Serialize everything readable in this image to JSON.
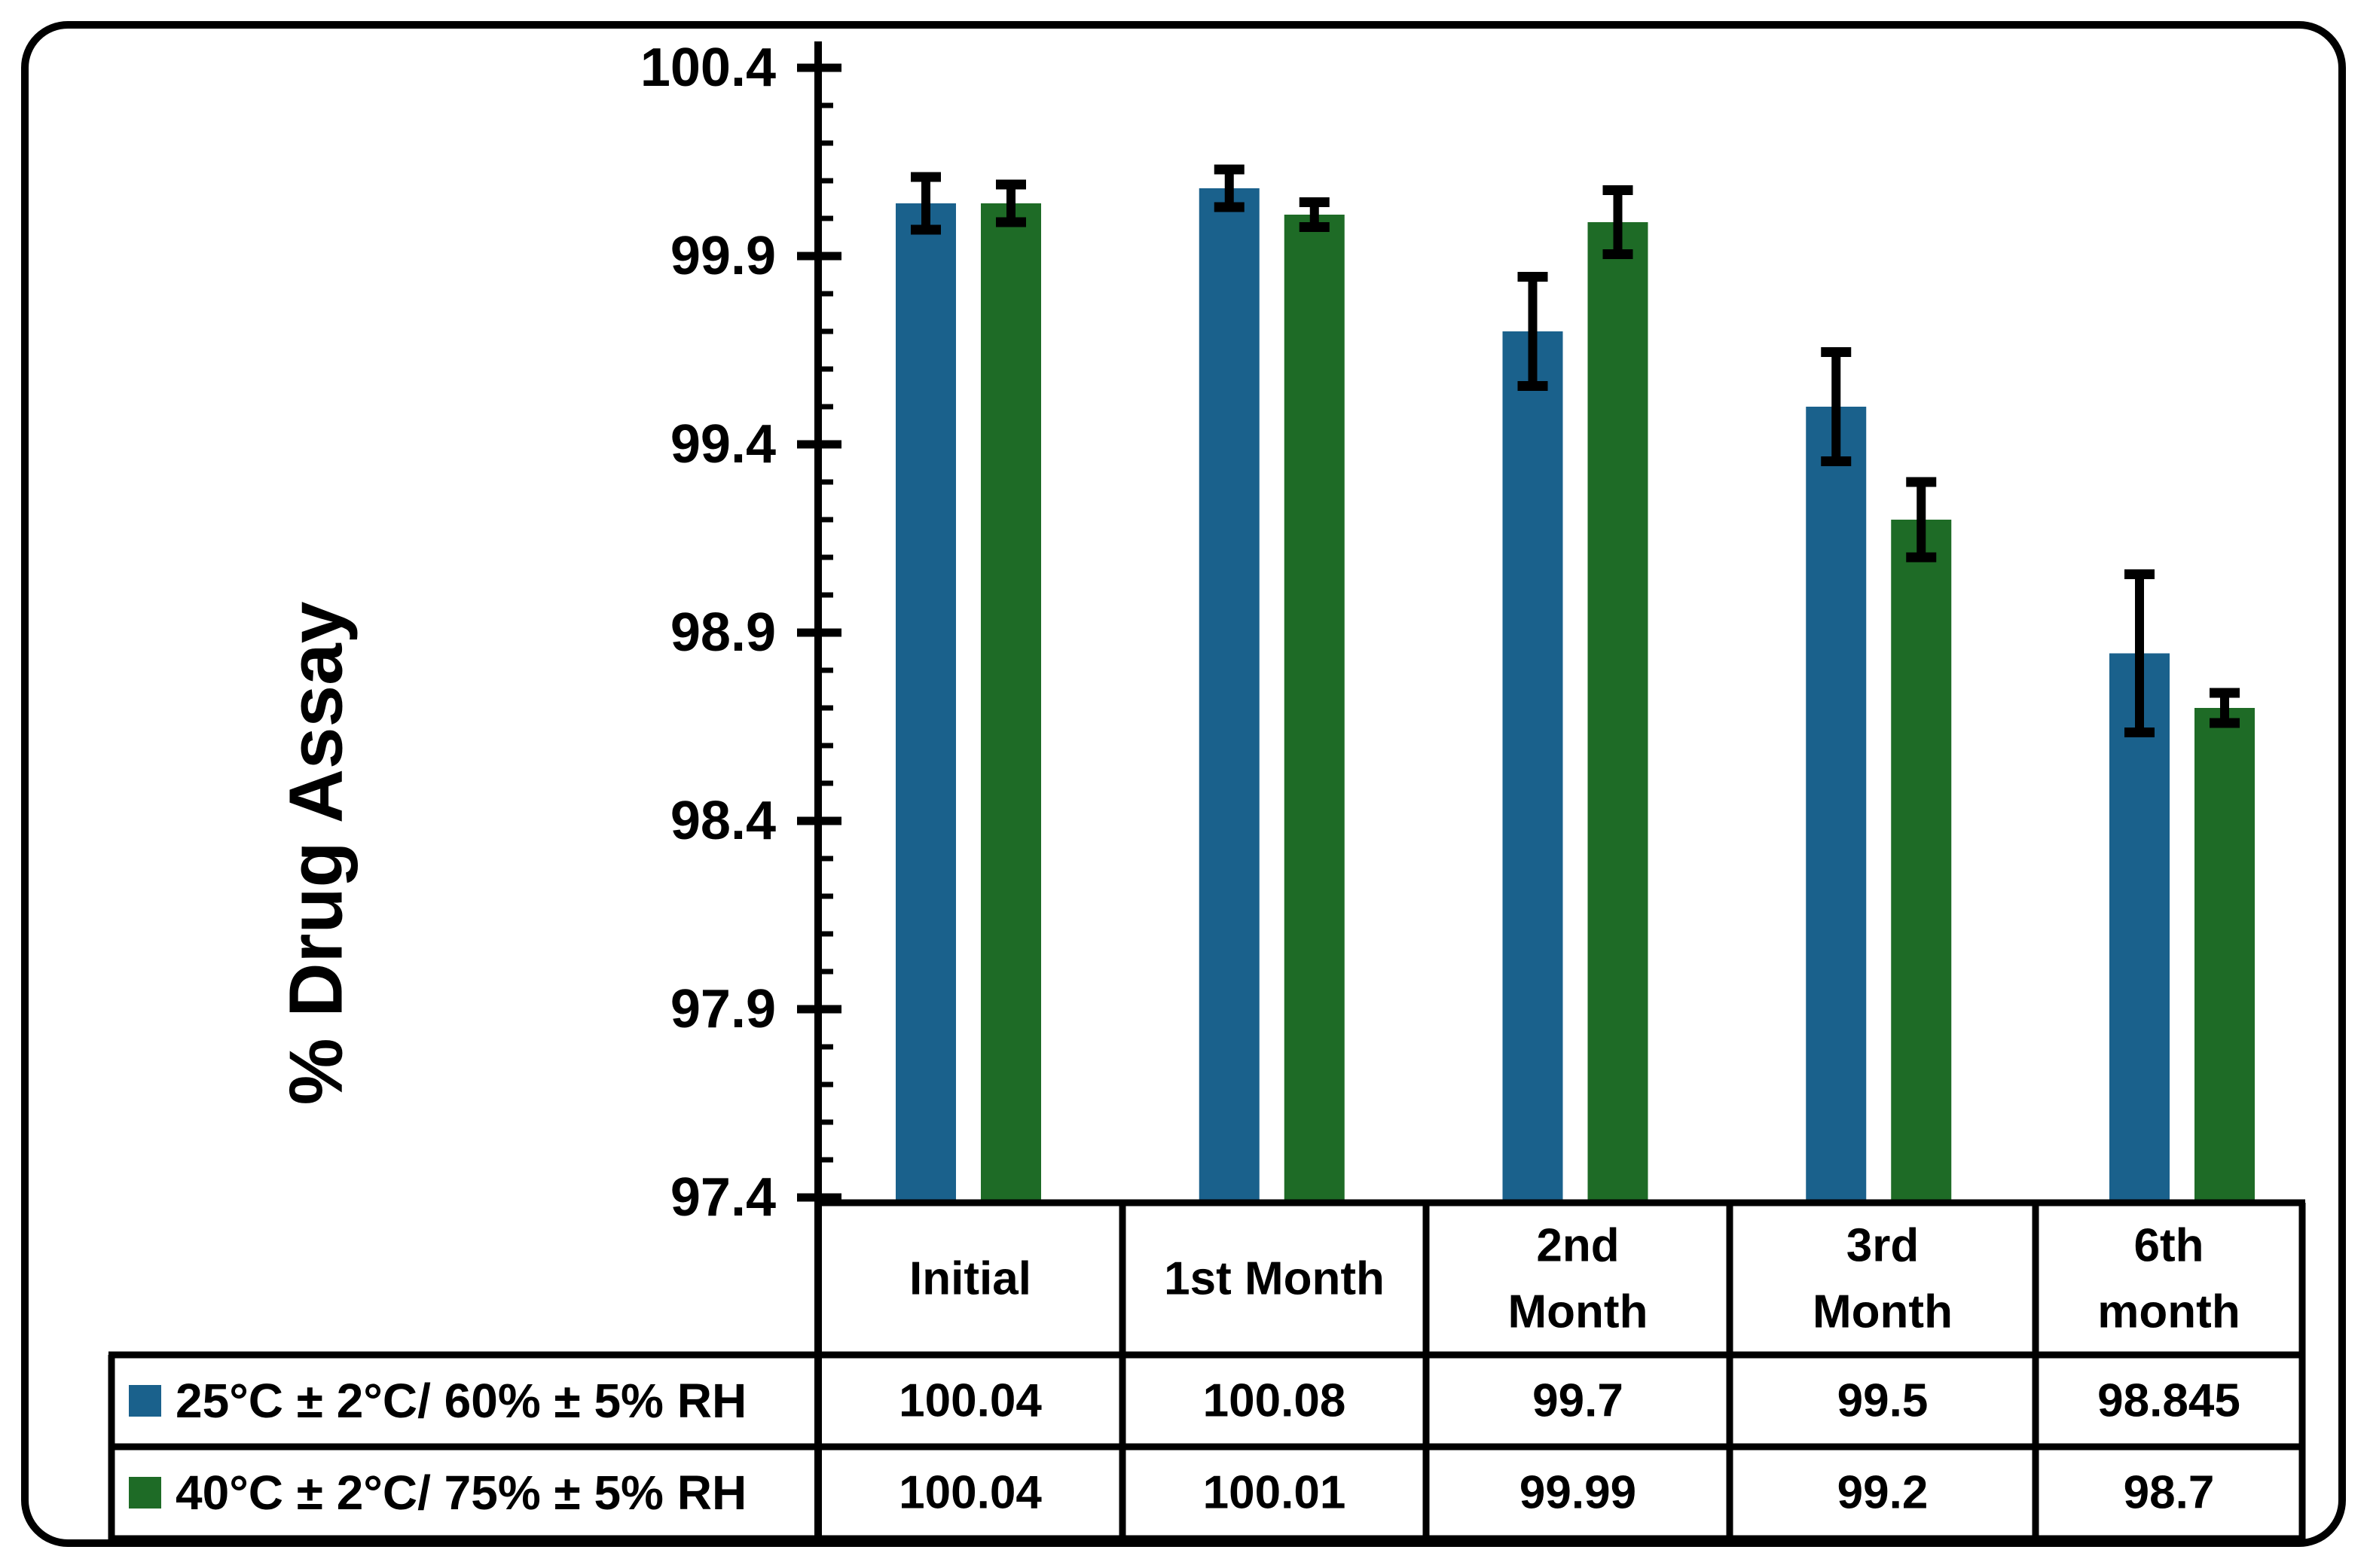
{
  "figure": {
    "background": "#FFFFFF",
    "frame_color": "#000000"
  },
  "chart_data": {
    "type": "bar",
    "title": "",
    "ylabel": "% Drug Assay",
    "xlabel": "",
    "categories": [
      "Initial",
      "1st Month",
      "2nd Month",
      "3rd Month",
      "6th month"
    ],
    "category_lines": [
      [
        "Initial"
      ],
      [
        "1st Month"
      ],
      [
        "2nd",
        "Month"
      ],
      [
        "3rd",
        "Month"
      ],
      [
        "6th",
        "month"
      ]
    ],
    "series": [
      {
        "name": "25°C ± 2°C/ 60% ± 5% RH",
        "color": "#1A618C",
        "values": [
          100.04,
          100.08,
          99.7,
          99.5,
          98.845
        ],
        "errors": [
          0.07,
          0.05,
          0.145,
          0.145,
          0.21
        ],
        "display_values": [
          "100.04",
          "100.08",
          "99.7",
          "99.5",
          "98.845"
        ]
      },
      {
        "name": "40°C ± 2°C/ 75% ± 5% RH",
        "color": "#1E6B26",
        "values": [
          100.04,
          100.01,
          99.99,
          99.2,
          98.7
        ],
        "errors": [
          0.05,
          0.033,
          0.085,
          0.1,
          0.04
        ],
        "display_values": [
          "100.04",
          "100.01",
          "99.99",
          "99.2",
          "98.7"
        ]
      }
    ],
    "ylim": [
      97.4,
      100.4
    ],
    "ytick_labels": [
      "100.4",
      "99.9",
      "99.4",
      "98.9",
      "98.4",
      "97.9",
      "97.4"
    ],
    "ytick_step": 0.5,
    "minor_tick_step": 0.1,
    "grid": false,
    "error_bars": true,
    "legend_position": "table rows left of data table",
    "axis_color": "#000000",
    "text_color": "#000000"
  }
}
